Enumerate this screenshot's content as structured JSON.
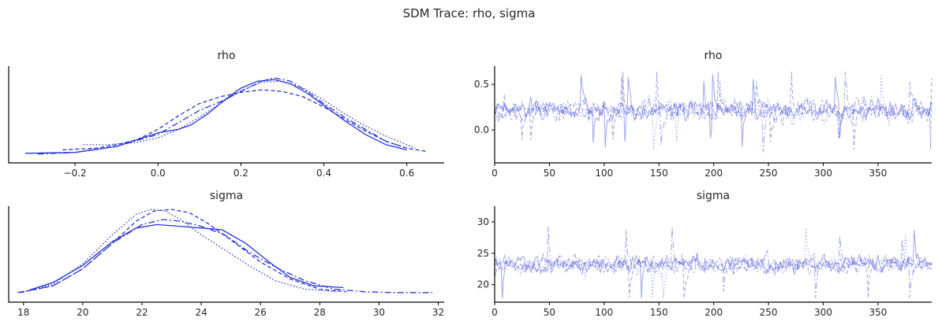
{
  "suptitle": "SDM Trace: rho, sigma",
  "colors": {
    "line": "#2a35d8"
  },
  "chart_data": [
    {
      "type": "line",
      "title": "rho",
      "xlabel": "",
      "ylabel": "",
      "xlim": [
        -0.36,
        0.69
      ],
      "xticks": [
        -0.2,
        0.0,
        0.2,
        0.4,
        0.6
      ],
      "xticklabels": [
        "−0.2",
        "0.0",
        "0.2",
        "0.4",
        "0.6"
      ],
      "yticks_visible": false,
      "series": [
        {
          "style": "solid",
          "x": [
            -0.32,
            -0.2,
            -0.1,
            -0.05,
            0.0,
            0.05,
            0.08,
            0.12,
            0.16,
            0.2,
            0.24,
            0.28,
            0.32,
            0.36,
            0.4,
            0.45,
            0.5,
            0.55,
            0.6
          ],
          "y": [
            0.02,
            0.03,
            0.1,
            0.18,
            0.26,
            0.3,
            0.35,
            0.48,
            0.64,
            0.78,
            0.86,
            0.88,
            0.83,
            0.72,
            0.58,
            0.4,
            0.24,
            0.12,
            0.06
          ]
        },
        {
          "style": "dashed",
          "x": [
            -0.23,
            -0.15,
            -0.1,
            -0.05,
            0.0,
            0.05,
            0.1,
            0.15,
            0.2,
            0.25,
            0.3,
            0.35,
            0.4,
            0.45,
            0.5,
            0.55,
            0.6,
            0.65
          ],
          "y": [
            0.06,
            0.08,
            0.12,
            0.18,
            0.3,
            0.46,
            0.6,
            0.68,
            0.73,
            0.76,
            0.74,
            0.68,
            0.56,
            0.42,
            0.28,
            0.16,
            0.08,
            0.04
          ]
        },
        {
          "style": "dashdot",
          "x": [
            -0.29,
            -0.2,
            -0.1,
            0.0,
            0.05,
            0.1,
            0.15,
            0.2,
            0.25,
            0.28,
            0.32,
            0.36,
            0.4,
            0.45,
            0.5,
            0.55,
            0.6
          ],
          "y": [
            0.01,
            0.03,
            0.1,
            0.24,
            0.38,
            0.52,
            0.62,
            0.74,
            0.86,
            0.9,
            0.86,
            0.74,
            0.6,
            0.44,
            0.3,
            0.16,
            0.08
          ]
        },
        {
          "style": "dotted",
          "x": [
            -0.18,
            -0.12,
            -0.05,
            0.0,
            0.05,
            0.1,
            0.15,
            0.2,
            0.25,
            0.3,
            0.35,
            0.4,
            0.45,
            0.5,
            0.55,
            0.6,
            0.62
          ],
          "y": [
            0.12,
            0.12,
            0.15,
            0.2,
            0.3,
            0.44,
            0.6,
            0.75,
            0.85,
            0.86,
            0.78,
            0.64,
            0.48,
            0.34,
            0.22,
            0.12,
            0.08
          ]
        }
      ]
    },
    {
      "type": "line",
      "title": "rho",
      "xlabel": "",
      "ylabel": "",
      "xlim": [
        0,
        399
      ],
      "ylim": [
        -0.36,
        0.7
      ],
      "xticks": [
        0,
        50,
        100,
        150,
        200,
        250,
        300,
        350
      ],
      "yticks": [
        0.0,
        0.5
      ],
      "yticklabels": [
        "0.0",
        "0.5"
      ],
      "n_draws": 400,
      "chains": 4,
      "mean": 0.22,
      "spread": 0.14,
      "min": -0.32,
      "max": 0.64,
      "alpha": 0.45
    },
    {
      "type": "line",
      "title": "sigma",
      "xlabel": "",
      "ylabel": "",
      "xlim": [
        17.5,
        32.2
      ],
      "xticks": [
        18,
        20,
        22,
        24,
        26,
        28,
        30,
        32
      ],
      "yticks_visible": false,
      "series": [
        {
          "style": "solid",
          "x": [
            18.2,
            19,
            20,
            21,
            21.8,
            22.5,
            23.3,
            24,
            24.7,
            25.5,
            26.3,
            27,
            27.8,
            28.8
          ],
          "y": [
            0.05,
            0.14,
            0.34,
            0.62,
            0.78,
            0.82,
            0.8,
            0.78,
            0.76,
            0.6,
            0.38,
            0.2,
            0.1,
            0.08
          ]
        },
        {
          "style": "dashed",
          "x": [
            17.9,
            19,
            20,
            21,
            21.8,
            22.4,
            23,
            23.6,
            24.2,
            25,
            26,
            27,
            28,
            28.9
          ],
          "y": [
            0.02,
            0.1,
            0.3,
            0.6,
            0.86,
            0.98,
            1.0,
            0.96,
            0.84,
            0.64,
            0.38,
            0.18,
            0.06,
            0.03
          ]
        },
        {
          "style": "dashdot",
          "x": [
            17.8,
            19,
            20,
            21,
            22,
            22.7,
            23.3,
            24,
            24.8,
            25.6,
            26.5,
            27.5,
            28.5,
            29.5,
            30.5,
            31.8
          ],
          "y": [
            0.02,
            0.1,
            0.3,
            0.6,
            0.82,
            0.88,
            0.86,
            0.8,
            0.7,
            0.5,
            0.32,
            0.16,
            0.06,
            0.03,
            0.02,
            0.02
          ]
        },
        {
          "style": "dotted",
          "x": [
            17.9,
            19,
            20,
            21,
            21.8,
            22.3,
            22.8,
            23.3,
            24,
            24.8,
            25.6,
            26.5,
            27.5,
            28.6
          ],
          "y": [
            0.02,
            0.12,
            0.36,
            0.7,
            0.94,
            1.0,
            0.98,
            0.88,
            0.7,
            0.52,
            0.34,
            0.16,
            0.06,
            0.03
          ]
        }
      ]
    },
    {
      "type": "line",
      "title": "sigma",
      "xlabel": "",
      "ylabel": "",
      "xlim": [
        0,
        399
      ],
      "ylim": [
        17.2,
        32.5
      ],
      "xticks": [
        0,
        50,
        100,
        150,
        200,
        250,
        300,
        350
      ],
      "yticks": [
        20,
        25,
        30
      ],
      "yticklabels": [
        "20",
        "25",
        "30"
      ],
      "n_draws": 400,
      "chains": 4,
      "mean": 23.2,
      "spread": 1.8,
      "min": 17.8,
      "max": 31.8,
      "alpha": 0.45
    }
  ]
}
